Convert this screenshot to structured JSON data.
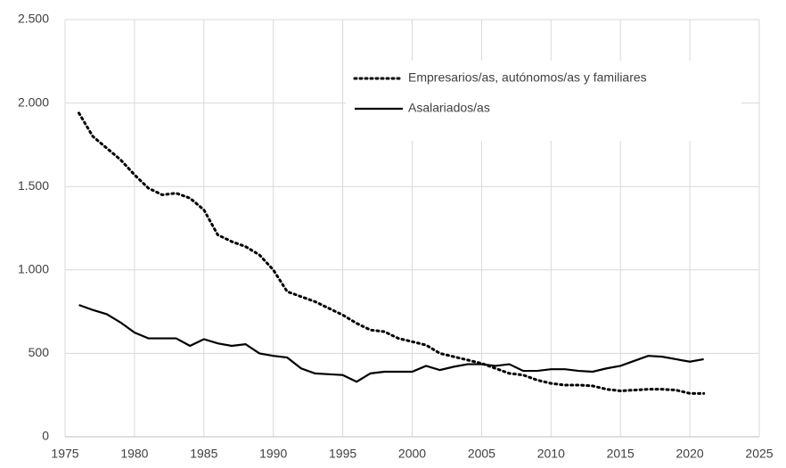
{
  "chart_data": {
    "type": "line",
    "x": [
      1976,
      1977,
      1978,
      1979,
      1980,
      1981,
      1982,
      1983,
      1984,
      1985,
      1986,
      1987,
      1988,
      1989,
      1990,
      1991,
      1992,
      1993,
      1994,
      1995,
      1996,
      1997,
      1998,
      1999,
      2000,
      2001,
      2002,
      2003,
      2004,
      2005,
      2006,
      2007,
      2008,
      2009,
      2010,
      2011,
      2012,
      2013,
      2014,
      2015,
      2016,
      2017,
      2018,
      2019,
      2020,
      2021
    ],
    "series": [
      {
        "name": "Empresarios/as, autónomos/as y familiares",
        "color": "#000000",
        "style": "dotted",
        "values": [
          1940,
          1800,
          1730,
          1660,
          1570,
          1490,
          1450,
          1460,
          1430,
          1360,
          1210,
          1170,
          1140,
          1090,
          1000,
          870,
          840,
          810,
          770,
          730,
          680,
          640,
          630,
          590,
          570,
          550,
          500,
          480,
          460,
          440,
          410,
          380,
          370,
          340,
          320,
          310,
          310,
          305,
          285,
          275,
          280,
          285,
          285,
          280,
          260,
          260
        ]
      },
      {
        "name": "Asalariados/as",
        "color": "#000000",
        "style": "solid",
        "values": [
          790,
          760,
          735,
          685,
          625,
          590,
          590,
          590,
          545,
          585,
          560,
          545,
          555,
          500,
          485,
          475,
          410,
          380,
          375,
          370,
          330,
          380,
          390,
          390,
          390,
          425,
          400,
          420,
          435,
          435,
          425,
          435,
          395,
          395,
          405,
          405,
          395,
          390,
          410,
          425,
          455,
          485,
          480,
          465,
          450,
          465
        ]
      }
    ],
    "xlim": [
      1975,
      2025
    ],
    "xticks": [
      1975,
      1980,
      1985,
      1990,
      1995,
      2000,
      2005,
      2010,
      2015,
      2020,
      2025
    ],
    "ylim": [
      0,
      2500
    ],
    "yticks": [
      0,
      500,
      {
        "value": 1000,
        "label": "1.000"
      },
      {
        "value": 1500,
        "label": "1.500"
      },
      {
        "value": 2000,
        "label": "2.000"
      },
      {
        "value": 2500,
        "label": "2.500"
      }
    ],
    "grid": true
  }
}
